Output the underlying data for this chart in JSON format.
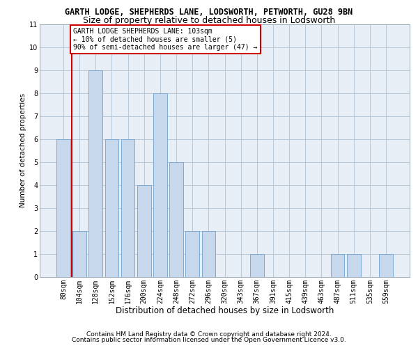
{
  "title1": "GARTH LODGE, SHEPHERDS LANE, LODSWORTH, PETWORTH, GU28 9BN",
  "title2": "Size of property relative to detached houses in Lodsworth",
  "xlabel": "Distribution of detached houses by size in Lodsworth",
  "ylabel": "Number of detached properties",
  "categories": [
    "80sqm",
    "104sqm",
    "128sqm",
    "152sqm",
    "176sqm",
    "200sqm",
    "224sqm",
    "248sqm",
    "272sqm",
    "296sqm",
    "320sqm",
    "343sqm",
    "367sqm",
    "391sqm",
    "415sqm",
    "439sqm",
    "463sqm",
    "487sqm",
    "511sqm",
    "535sqm",
    "559sqm"
  ],
  "values": [
    6,
    2,
    9,
    6,
    6,
    4,
    8,
    5,
    2,
    2,
    0,
    0,
    1,
    0,
    0,
    0,
    0,
    1,
    1,
    0,
    1
  ],
  "bar_color": "#c8d8ec",
  "bar_edge_color": "#7bacd4",
  "grid_color": "#b8c8d8",
  "background_color": "#ffffff",
  "plot_bg_color": "#e8eef6",
  "annotation_box_text": "GARTH LODGE SHEPHERDS LANE: 103sqm\n← 10% of detached houses are smaller (5)\n90% of semi-detached houses are larger (47) →",
  "annotation_box_color": "#ffffff",
  "annotation_box_edge_color": "#cc0000",
  "vline_color": "#cc0000",
  "ylim": [
    0,
    11
  ],
  "yticks": [
    0,
    1,
    2,
    3,
    4,
    5,
    6,
    7,
    8,
    9,
    10,
    11
  ],
  "footer1": "Contains HM Land Registry data © Crown copyright and database right 2024.",
  "footer2": "Contains public sector information licensed under the Open Government Licence v3.0.",
  "title1_fontsize": 8.5,
  "title2_fontsize": 9,
  "xlabel_fontsize": 8.5,
  "ylabel_fontsize": 7.5,
  "tick_fontsize": 7,
  "annotation_fontsize": 7,
  "footer_fontsize": 6.5
}
